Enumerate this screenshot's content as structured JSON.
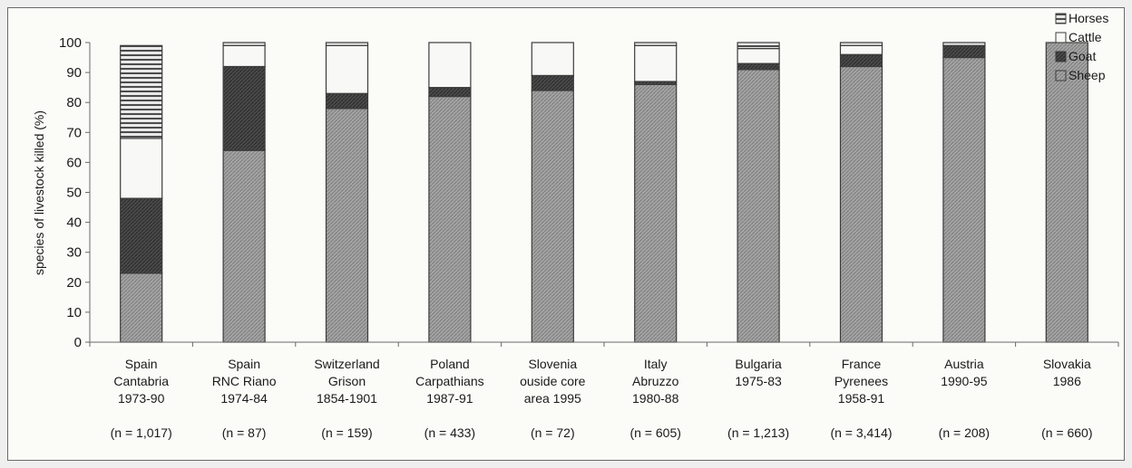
{
  "chart_data": {
    "type": "bar",
    "stacked": true,
    "ylabel": "species of livestock killed (%)",
    "ylim": [
      0,
      100
    ],
    "yticks": [
      "0",
      "10",
      "20",
      "30",
      "40",
      "50",
      "60",
      "70",
      "80",
      "90",
      "100"
    ],
    "legend_position": "top-right",
    "categories": [
      [
        "Spain",
        "Cantabria",
        "1973-90",
        "(n = 1,017)"
      ],
      [
        "Spain",
        "RNC Riano",
        "1974-84",
        "(n = 87)"
      ],
      [
        "Switzerland",
        "Grison",
        "1854-1901",
        "(n = 159)"
      ],
      [
        "Poland",
        "Carpathians",
        "1987-91",
        "(n = 433)"
      ],
      [
        "Slovenia",
        "ouside core",
        "area 1995",
        "(n = 72)"
      ],
      [
        "Italy",
        "Abruzzo",
        "1980-88",
        "(n = 605)"
      ],
      [
        "Bulgaria",
        "1975-83",
        "",
        "(n = 1,213)"
      ],
      [
        "France",
        "Pyrenees",
        "1958-91",
        "(n = 3,414)"
      ],
      [
        "Austria",
        "1990-95",
        "",
        "(n = 208)"
      ],
      [
        "Slovakia",
        "1986",
        "",
        "(n = 660)"
      ]
    ],
    "series": [
      {
        "name": "Sheep",
        "values": [
          23,
          64,
          78,
          82,
          84,
          86,
          91,
          92,
          95,
          100
        ]
      },
      {
        "name": "Goat",
        "values": [
          25,
          28,
          5,
          3,
          5,
          1,
          2,
          4,
          4,
          0
        ]
      },
      {
        "name": "Cattle",
        "values": [
          20,
          7,
          16,
          15,
          11,
          12,
          5,
          3,
          0,
          0
        ]
      },
      {
        "name": "Horses",
        "values": [
          31,
          1,
          1,
          0,
          0,
          1,
          2,
          1,
          1,
          0
        ]
      }
    ],
    "legend_order": [
      "Horses",
      "Cattle",
      "Goat",
      "Sheep"
    ],
    "colors": {
      "Sheep": "#a0a0a0",
      "Goat": "#4a4a4a",
      "Cattle": "#f8f8f6",
      "Horses": "#5a5a5a",
      "axis": "#6a6a6a"
    }
  }
}
